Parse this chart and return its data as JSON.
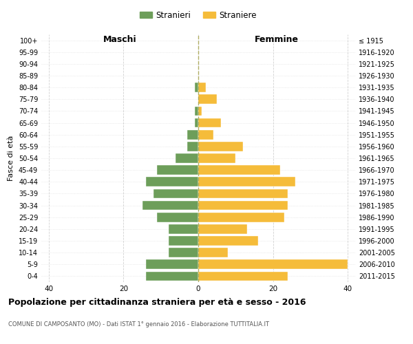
{
  "age_groups": [
    "100+",
    "95-99",
    "90-94",
    "85-89",
    "80-84",
    "75-79",
    "70-74",
    "65-69",
    "60-64",
    "55-59",
    "50-54",
    "45-49",
    "40-44",
    "35-39",
    "30-34",
    "25-29",
    "20-24",
    "15-19",
    "10-14",
    "5-9",
    "0-4"
  ],
  "birth_years": [
    "≤ 1915",
    "1916-1920",
    "1921-1925",
    "1926-1930",
    "1931-1935",
    "1936-1940",
    "1941-1945",
    "1946-1950",
    "1951-1955",
    "1956-1960",
    "1961-1965",
    "1966-1970",
    "1971-1975",
    "1976-1980",
    "1981-1985",
    "1986-1990",
    "1991-1995",
    "1996-2000",
    "2001-2005",
    "2006-2010",
    "2011-2015"
  ],
  "maschi": [
    0,
    0,
    0,
    0,
    1,
    0,
    1,
    1,
    3,
    3,
    6,
    11,
    14,
    12,
    15,
    11,
    8,
    8,
    8,
    14,
    14
  ],
  "femmine": [
    0,
    0,
    0,
    0,
    2,
    5,
    1,
    6,
    4,
    12,
    10,
    22,
    26,
    24,
    24,
    23,
    13,
    16,
    8,
    40,
    24
  ],
  "color_maschi": "#6d9e5a",
  "color_femmine": "#f5bc3a",
  "title": "Popolazione per cittadinanza straniera per età e sesso - 2016",
  "subtitle": "COMUNE DI CAMPOSANTO (MO) - Dati ISTAT 1° gennaio 2016 - Elaborazione TUTTITALIA.IT",
  "xlabel_left": "Maschi",
  "xlabel_right": "Femmine",
  "ylabel_left": "Fasce di età",
  "legend_stranieri": "Stranieri",
  "legend_straniere": "Straniere",
  "xlim": 42,
  "background_color": "#ffffff",
  "grid_color": "#cccccc",
  "bar_height": 0.8
}
